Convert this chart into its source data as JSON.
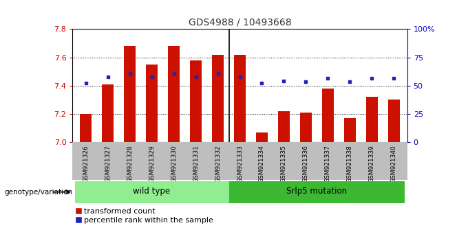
{
  "title": "GDS4988 / 10493668",
  "samples": [
    "GSM921326",
    "GSM921327",
    "GSM921328",
    "GSM921329",
    "GSM921330",
    "GSM921331",
    "GSM921332",
    "GSM921333",
    "GSM921334",
    "GSM921335",
    "GSM921336",
    "GSM921337",
    "GSM921338",
    "GSM921339",
    "GSM921340"
  ],
  "bar_values": [
    7.2,
    7.41,
    7.68,
    7.55,
    7.68,
    7.58,
    7.62,
    7.62,
    7.07,
    7.22,
    7.21,
    7.38,
    7.17,
    7.32,
    7.3
  ],
  "percentile_values": [
    7.42,
    7.46,
    7.485,
    7.46,
    7.485,
    7.46,
    7.485,
    7.46,
    7.42,
    7.435,
    7.43,
    7.45,
    7.43,
    7.45,
    7.45
  ],
  "bar_base": 7.0,
  "ylim": [
    7.0,
    7.8
  ],
  "right_ylim": [
    0,
    100
  ],
  "right_yticks": [
    0,
    25,
    50,
    75,
    100
  ],
  "right_yticklabels": [
    "0",
    "25",
    "50",
    "75",
    "100%"
  ],
  "left_yticks": [
    7.0,
    7.2,
    7.4,
    7.6,
    7.8
  ],
  "bar_color": "#CC1100",
  "dot_color": "#2222BB",
  "wild_type_indices": [
    0,
    1,
    2,
    3,
    4,
    5,
    6
  ],
  "srlp5_indices": [
    7,
    8,
    9,
    10,
    11,
    12,
    13,
    14
  ],
  "wild_type_label": "wild type",
  "srlp5_label": "Srlp5 mutation",
  "genotype_label": "genotype/variation",
  "legend_bar_label": "transformed count",
  "legend_dot_label": "percentile rank within the sample",
  "group_color_wild": "#90EE90",
  "group_color_srlp5": "#3CB832",
  "bg_color": "#FFFFFF",
  "tick_area_color": "#BEBEBE",
  "sep_line_color": "#000000",
  "grid_color": "#000000",
  "left_tick_color": "#CC0000",
  "right_tick_color": "#0000CC",
  "title_fontsize": 10,
  "bar_width": 0.55
}
